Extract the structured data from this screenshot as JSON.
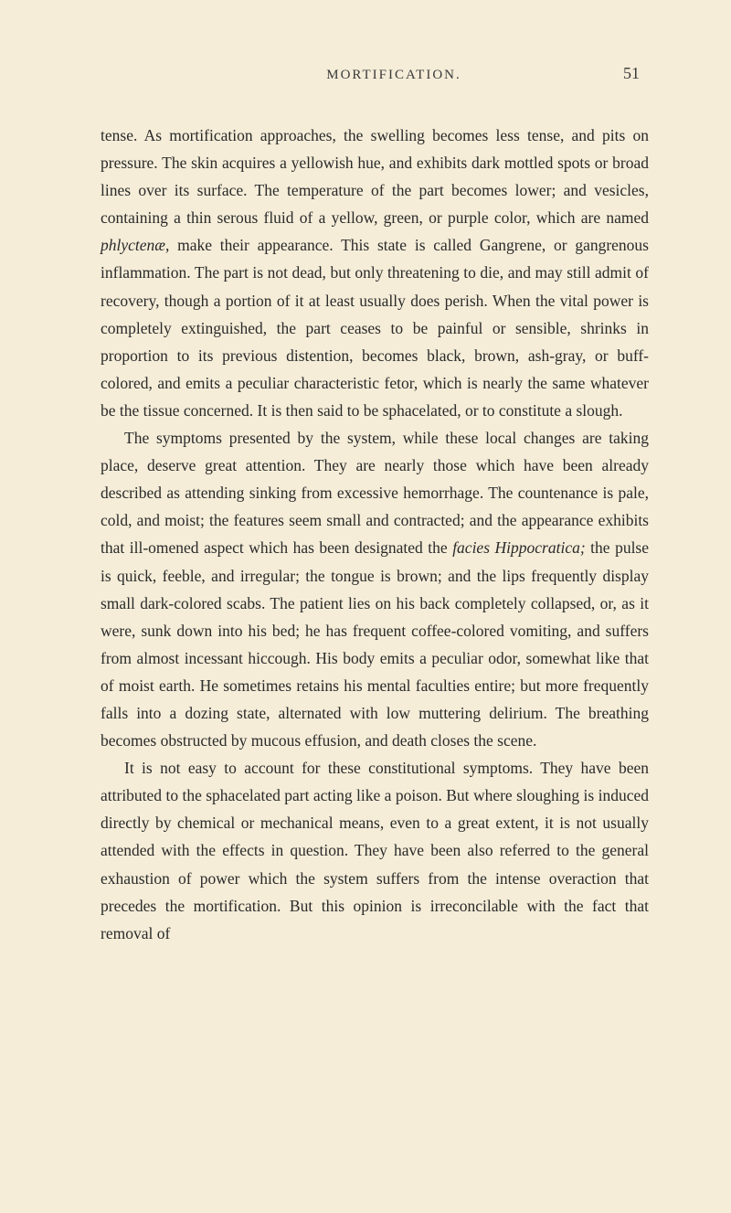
{
  "page": {
    "header_title": "MORTIFICATION.",
    "page_number": "51",
    "background_color": "#f5edd8",
    "text_color": "#2a2a2a",
    "header_color": "#3a3a3a",
    "body_fontsize": 17.5,
    "header_fontsize": 15,
    "pagenum_fontsize": 18,
    "line_height": 1.72
  },
  "paragraphs": {
    "p1_part1": "tense. As mortification approaches, the swelling becomes less tense, and pits on pressure. The skin acquires a yellowish hue, and exhibits dark mottled spots or broad lines over its surface. The temperature of the part becomes lower; and vesicles, containing a thin serous fluid of a yellow, green, or purple color, which are named ",
    "p1_italic1": "phlyctenæ",
    "p1_part2": ", make their appearance. This state is called Gangrene, or gangrenous inflammation. The part is not dead, but only threatening to die, and may still admit of recovery, though a portion of it at least usually does perish. When the vital power is completely extinguished, the part ceases to be painful or sensible, shrinks in proportion to its previous distention, becomes black, brown, ash-gray, or buff-colored, and emits a peculiar characteristic fetor, which is nearly the same whatever be the tissue concerned. It is then said to be sphacelated, or to constitute a slough.",
    "p2_part1": "The symptoms presented by the system, while these local changes are taking place, deserve great attention. They are nearly those which have been already described as attending sinking from excessive hemorrhage. The countenance is pale, cold, and moist; the features seem small and contracted; and the appearance exhibits that ill-omened aspect which has been designated the ",
    "p2_italic1": "facies Hippocratica;",
    "p2_part2": " the pulse is quick, feeble, and irregular; the tongue is brown; and the lips frequently display small dark-colored scabs. The patient lies on his back completely collapsed, or, as it were, sunk down into his bed; he has frequent coffee-colored vomiting, and suffers from almost incessant hiccough. His body emits a peculiar odor, somewhat like that of moist earth. He sometimes retains his mental faculties entire; but more frequently falls into a dozing state, alternated with low muttering delirium. The breathing becomes obstructed by mucous effusion, and death closes the scene.",
    "p3": "It is not easy to account for these constitutional symptoms. They have been attributed to the sphacelated part acting like a poison. But where sloughing is induced directly by chemical or mechanical means, even to a great extent, it is not usually attended with the effects in question. They have been also referred to the general exhaustion of power which the system suffers from the intense overaction that precedes the mortification. But this opinion is irreconcilable with the fact that removal of"
  }
}
